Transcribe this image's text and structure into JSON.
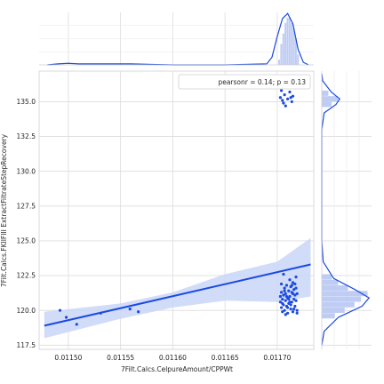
{
  "chart_data": {
    "type": "scatter",
    "subtype": "jointplot",
    "title": "",
    "xlabel": "7Filt.Calcs.CelpureAmount/CPPWt",
    "ylabel": "7Filt.Calcs.FKIIFIII ExtractFiltrateStepRecovery",
    "xlim": [
      0.011472,
      0.011735
    ],
    "ylim": [
      117.2,
      137.2
    ],
    "xticks": [
      0.0115,
      0.01155,
      0.0116,
      0.01165,
      0.0117
    ],
    "xtick_labels": [
      "0.01150",
      "0.01155",
      "0.01160",
      "0.01165",
      "0.01170"
    ],
    "yticks": [
      117.5,
      120.0,
      122.5,
      125.0,
      127.5,
      130.0,
      132.5,
      135.0
    ],
    "ytick_labels": [
      "117.5",
      "120.0",
      "122.5",
      "125.0",
      "127.5",
      "130.0",
      "132.5",
      "135.0"
    ],
    "grid": true,
    "annotation": "pearsonr = 0.14; p = 0.13",
    "annotation_position": "top-right",
    "color": "#1a4ae0",
    "band_color": "#c9d6f7",
    "regression": {
      "x0": 0.011477,
      "y0": 118.9,
      "x1": 0.011732,
      "y1": 123.3
    },
    "confidence_band": [
      {
        "x": 0.011477,
        "lo": 118.0,
        "hi": 119.9
      },
      {
        "x": 0.01155,
        "lo": 119.4,
        "hi": 120.5
      },
      {
        "x": 0.0116,
        "lo": 120.2,
        "hi": 121.3
      },
      {
        "x": 0.01165,
        "lo": 120.7,
        "hi": 122.6
      },
      {
        "x": 0.0117,
        "lo": 120.6,
        "hi": 123.5
      },
      {
        "x": 0.011732,
        "lo": 121.0,
        "hi": 125.2
      }
    ],
    "points": [
      [
        0.011492,
        120.0
      ],
      [
        0.011498,
        119.5
      ],
      [
        0.011508,
        119.0
      ],
      [
        0.011531,
        119.8
      ],
      [
        0.011559,
        120.1
      ],
      [
        0.011567,
        119.9
      ],
      [
        0.011703,
        135.3
      ],
      [
        0.011704,
        135.8
      ],
      [
        0.011705,
        135.1
      ],
      [
        0.011706,
        134.9
      ],
      [
        0.011707,
        135.5
      ],
      [
        0.011708,
        134.7
      ],
      [
        0.01171,
        135.2
      ],
      [
        0.011712,
        135.7
      ],
      [
        0.011713,
        135.3
      ],
      [
        0.011714,
        135.0
      ],
      [
        0.011715,
        135.4
      ],
      [
        0.011703,
        121.0
      ],
      [
        0.011703,
        120.6
      ],
      [
        0.011704,
        120.2
      ],
      [
        0.011704,
        121.3
      ],
      [
        0.011705,
        119.9
      ],
      [
        0.011705,
        120.8
      ],
      [
        0.011706,
        121.1
      ],
      [
        0.011706,
        120.4
      ],
      [
        0.011707,
        121.6
      ],
      [
        0.011707,
        120.0
      ],
      [
        0.011708,
        120.7
      ],
      [
        0.011708,
        121.2
      ],
      [
        0.011709,
        120.3
      ],
      [
        0.011709,
        121.8
      ],
      [
        0.01171,
        120.9
      ],
      [
        0.01171,
        119.8
      ],
      [
        0.011711,
        121.4
      ],
      [
        0.011711,
        120.5
      ],
      [
        0.011712,
        122.2
      ],
      [
        0.011712,
        121.0
      ],
      [
        0.011713,
        120.1
      ],
      [
        0.011713,
        121.7
      ],
      [
        0.011714,
        120.6
      ],
      [
        0.011714,
        121.3
      ],
      [
        0.011715,
        119.9
      ],
      [
        0.011715,
        122.0
      ],
      [
        0.011716,
        120.8
      ],
      [
        0.011716,
        121.5
      ],
      [
        0.011717,
        120.3
      ],
      [
        0.011717,
        121.1
      ],
      [
        0.011718,
        120.7
      ],
      [
        0.011718,
        122.4
      ],
      [
        0.011719,
        121.2
      ],
      [
        0.011719,
        120.0
      ],
      [
        0.011704,
        121.9
      ],
      [
        0.011706,
        122.6
      ],
      [
        0.011708,
        119.7
      ],
      [
        0.01171,
        120.2
      ],
      [
        0.011712,
        120.6
      ],
      [
        0.011714,
        121.8
      ],
      [
        0.011716,
        120.1
      ],
      [
        0.011718,
        121.6
      ],
      [
        0.011709,
        121.0
      ],
      [
        0.011711,
        120.8
      ],
      [
        0.011713,
        120.4
      ],
      [
        0.011715,
        121.2
      ],
      [
        0.011717,
        121.9
      ],
      [
        0.011705,
        120.5
      ],
      [
        0.011707,
        121.4
      ],
      [
        0.011719,
        119.8
      ]
    ],
    "marginal_x": {
      "hist_bins": [
        0.011699,
        0.011701,
        0.011703,
        0.011705,
        0.011707,
        0.011709,
        0.011711,
        0.011713,
        0.011715,
        0.011717,
        0.011719,
        0.011721
      ],
      "hist_counts": [
        0,
        1,
        4,
        6,
        8,
        9,
        9,
        8,
        7,
        5,
        2
      ],
      "kde": [
        [
          0.01148,
          0.0
        ],
        [
          0.01149,
          0.02
        ],
        [
          0.0115,
          0.03
        ],
        [
          0.01151,
          0.02
        ],
        [
          0.01153,
          0.02
        ],
        [
          0.01156,
          0.02
        ],
        [
          0.01158,
          0.01
        ],
        [
          0.0116,
          0.0
        ],
        [
          0.01165,
          0.0
        ],
        [
          0.01169,
          0.02
        ],
        [
          0.011695,
          0.15
        ],
        [
          0.0117,
          0.55
        ],
        [
          0.011705,
          0.9
        ],
        [
          0.01171,
          1.0
        ],
        [
          0.011715,
          0.8
        ],
        [
          0.01172,
          0.3
        ],
        [
          0.011725,
          0.05
        ],
        [
          0.01173,
          0.0
        ]
      ]
    },
    "marginal_y": {
      "hist_bins": [
        119.4,
        119.8,
        120.2,
        120.6,
        121.0,
        121.4,
        121.8,
        122.2,
        122.6,
        134.6,
        135.0,
        135.4,
        135.8
      ],
      "hist_counts": [
        4,
        7,
        10,
        12,
        14,
        8,
        5,
        3,
        0,
        3,
        5,
        2
      ],
      "kde": [
        [
          117.5,
          0.0
        ],
        [
          118.5,
          0.05
        ],
        [
          119.5,
          0.35
        ],
        [
          120.3,
          0.85
        ],
        [
          120.9,
          1.0
        ],
        [
          121.5,
          0.7
        ],
        [
          122.3,
          0.25
        ],
        [
          123.5,
          0.03
        ],
        [
          125.0,
          0.0
        ],
        [
          133.0,
          0.0
        ],
        [
          134.2,
          0.05
        ],
        [
          134.8,
          0.3
        ],
        [
          135.2,
          0.38
        ],
        [
          135.7,
          0.2
        ],
        [
          136.5,
          0.02
        ],
        [
          137.0,
          0.0
        ]
      ]
    }
  }
}
